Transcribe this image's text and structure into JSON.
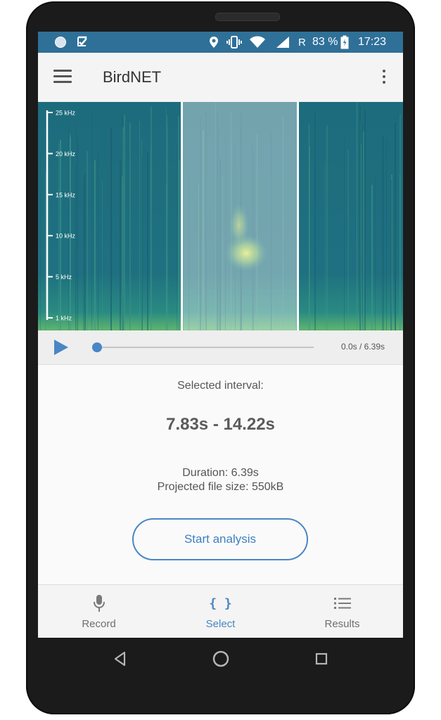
{
  "status_bar": {
    "roaming": "R",
    "battery_percent": "83 %",
    "time": "17:23",
    "icons": [
      "sync-circle-icon",
      "check-icon",
      "location-icon",
      "vibrate-icon",
      "wifi-icon",
      "signal-icon",
      "battery-icon"
    ]
  },
  "app_bar": {
    "title": "BirdNET",
    "menu_icon": "hamburger-menu-icon",
    "overflow_icon": "more-vert-icon"
  },
  "spectrogram": {
    "frequency_labels": [
      "25 kHz",
      "20 kHz",
      "15 kHz",
      "10 kHz",
      "5 kHz",
      "1 kHz"
    ],
    "selection_start_fraction": 0.394,
    "selection_end_fraction": 0.711
  },
  "player": {
    "play_icon": "play-icon",
    "time_readout": "0.0s / 6.39s",
    "progress_fraction": 0.0
  },
  "info": {
    "interval_label": "Selected interval:",
    "interval_value": "7.83s - 14.22s",
    "duration": "Duration: 6.39s",
    "file_size": "Projected file size: 550kB"
  },
  "actions": {
    "start_analysis": "Start analysis"
  },
  "bottom_nav": {
    "items": [
      {
        "label": "Record",
        "icon": "microphone-icon"
      },
      {
        "label": "Select",
        "icon": "braces-icon",
        "glyph": "{ }"
      },
      {
        "label": "Results",
        "icon": "list-icon"
      }
    ],
    "active": "Select"
  },
  "colors": {
    "status_bar": "#2f7098",
    "accent": "#4a86c5",
    "spectrogram_bg": "#1f6f80",
    "spectrogram_high": "#d8e84a"
  }
}
